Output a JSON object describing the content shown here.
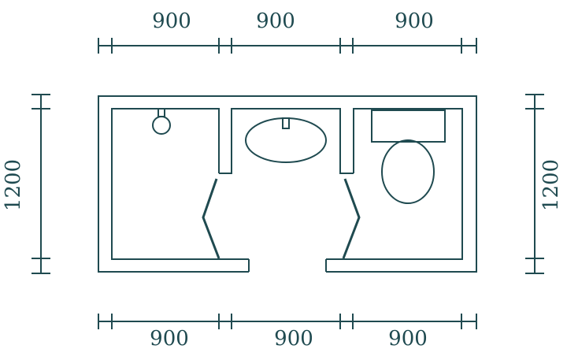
{
  "colors": {
    "line": "#1f4a50",
    "background": "#ffffff"
  },
  "dimensions": {
    "top": [
      "900",
      "900",
      "900"
    ],
    "bottom": [
      "900",
      "900",
      "900"
    ],
    "left": "1200",
    "right": "1200"
  },
  "fixtures": [
    "shower-drain-icon",
    "sink-basin-icon",
    "toilet-tank-icon",
    "toilet-bowl-icon"
  ]
}
